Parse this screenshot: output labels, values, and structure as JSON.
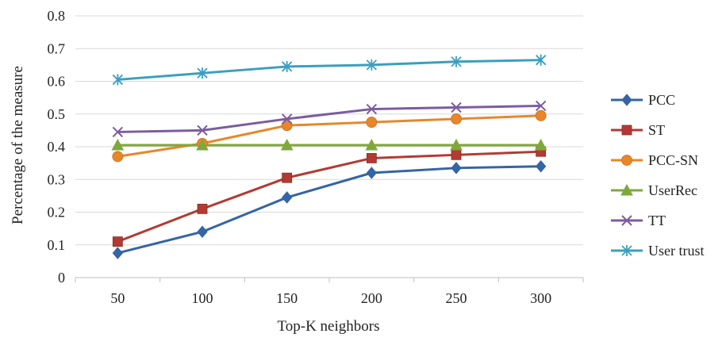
{
  "chart_data": {
    "type": "line",
    "title": "",
    "xlabel": "Top-K neighbors",
    "ylabel": "Percentage of the measure",
    "categories": [
      "50",
      "100",
      "150",
      "200",
      "250",
      "300"
    ],
    "ylim": [
      0,
      0.8
    ],
    "yticks": [
      "0",
      "0.1",
      "0.2",
      "0.3",
      "0.4",
      "0.5",
      "0.6",
      "0.7",
      "0.8"
    ],
    "grid": "horizontal",
    "legend_position": "right",
    "series": [
      {
        "name": "PCC",
        "marker": "diamond",
        "color": "#3465a4",
        "values": [
          0.075,
          0.14,
          0.245,
          0.32,
          0.335,
          0.34
        ]
      },
      {
        "name": "ST",
        "marker": "square",
        "color": "#b33a33",
        "values": [
          0.11,
          0.21,
          0.305,
          0.365,
          0.375,
          0.385
        ]
      },
      {
        "name": "PCC-SN",
        "marker": "circle",
        "color": "#e8862a",
        "values": [
          0.37,
          0.41,
          0.465,
          0.475,
          0.485,
          0.495
        ]
      },
      {
        "name": "UserRec",
        "marker": "triangle",
        "color": "#7fa83a",
        "values": [
          0.405,
          0.405,
          0.405,
          0.405,
          0.405,
          0.405
        ]
      },
      {
        "name": "TT",
        "marker": "x",
        "color": "#7b5ca0",
        "values": [
          0.445,
          0.45,
          0.485,
          0.515,
          0.52,
          0.525
        ]
      },
      {
        "name": "User trust",
        "marker": "asterisk",
        "color": "#3a9fc0",
        "values": [
          0.605,
          0.625,
          0.645,
          0.65,
          0.66,
          0.665
        ]
      }
    ]
  }
}
